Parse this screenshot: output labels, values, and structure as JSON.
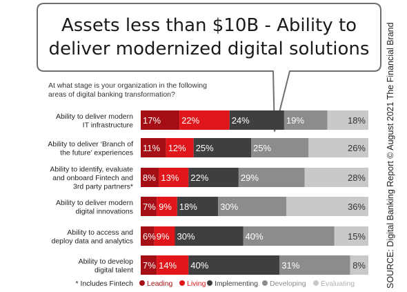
{
  "chart_data": {
    "type": "bar",
    "orientation": "horizontal",
    "stacked": true,
    "normalized": true,
    "title": "Assets less than $10B - Ability to deliver modernized digital solutions",
    "title_lines": [
      "Assets less than $10B - Ability to",
      "deliver modernized digital solutions"
    ],
    "question_lines": [
      "At what stage is your organization in the following",
      "areas of digital banking transformation?"
    ],
    "categories": [
      [
        "Ability to deliver modern",
        "IT infrastructure"
      ],
      [
        "Ability to deliver ‘Branch of",
        "the future’ experiences"
      ],
      [
        "Ability to identify, evaluate",
        "and onboard Fintech and",
        "3rd party partners*"
      ],
      [
        "Ability to deliver modern",
        "digital innovations"
      ],
      [
        "Ability to access and",
        "deploy data and analytics"
      ],
      [
        "Ability to develop",
        "digital talent"
      ]
    ],
    "series": [
      {
        "name": "Leading",
        "color": "#a50e14",
        "label_color": "#ffffff",
        "values": [
          17,
          11,
          8,
          7,
          6,
          7
        ]
      },
      {
        "name": "Living",
        "color": "#e0161b",
        "label_color": "#ffffff",
        "values": [
          22,
          12,
          13,
          9,
          9,
          14
        ]
      },
      {
        "name": "Implementing",
        "color": "#3f3f41",
        "label_color": "#ffffff",
        "values": [
          24,
          25,
          22,
          18,
          30,
          40
        ]
      },
      {
        "name": "Developing",
        "color": "#8c8c8c",
        "label_color": "#ffffff",
        "values": [
          19,
          25,
          29,
          30,
          40,
          31
        ]
      },
      {
        "name": "Evaluating",
        "color": "#c9c9c9",
        "label_color": "#333333",
        "values": [
          18,
          26,
          28,
          36,
          15,
          8
        ]
      }
    ],
    "value_suffix": "%",
    "legend_position": "bottom",
    "legend_text_colors": [
      "#a50e14",
      "#e0161b",
      "#3f3f41",
      "#8c8c8c",
      "#b0b0b0"
    ],
    "footnote": "* Includes Fintech",
    "source": "SOURCE: Digital Banking Report © August 2021 The Financial Brand",
    "grid": false
  }
}
